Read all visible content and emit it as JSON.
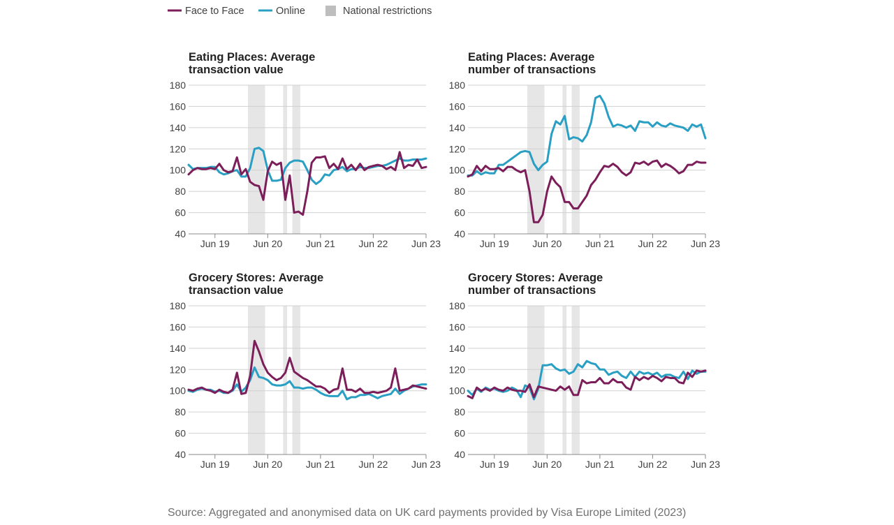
{
  "legend": {
    "items": [
      {
        "label": "Face to Face",
        "color": "#7b1e5a",
        "kind": "line"
      },
      {
        "label": "Online",
        "color": "#2a9fc4",
        "kind": "line"
      },
      {
        "label": "National restrictions",
        "color": "#bebebe",
        "kind": "box"
      }
    ]
  },
  "source": "Source: Aggregated and anonymised data on UK card payments provided by Visa Europe Limited (2023)",
  "colors": {
    "face_to_face": "#7b1e5a",
    "online": "#2a9fc4",
    "restrictions": "#e6e6e6",
    "grid": "#d0d0d0",
    "axis": "#888888"
  },
  "chart_data": [
    {
      "type": "line",
      "title_lines": [
        "Eating Places: Average",
        "transaction value"
      ],
      "x_ticks": [
        "Jun 19",
        "Jun 20",
        "Jun 21",
        "Jun 22",
        "Jun 23"
      ],
      "x_tick_index": [
        6,
        18,
        30,
        42,
        54
      ],
      "y_ticks": [
        "40",
        "60",
        "80",
        "100",
        "120",
        "140",
        "160",
        "180"
      ],
      "ylim": [
        40,
        180
      ],
      "xlim": [
        0,
        54
      ],
      "restrictions": [
        [
          13.5,
          17.4
        ],
        [
          21.5,
          22.4
        ],
        [
          23.6,
          25.4
        ]
      ],
      "series": [
        {
          "name": "Face to Face",
          "values": [
            96,
            100,
            102,
            101,
            101,
            102,
            101,
            106,
            100,
            98,
            99,
            112,
            96,
            101,
            89,
            86,
            85,
            72,
            99,
            108,
            105,
            107,
            72,
            95,
            60,
            61,
            58,
            80,
            107,
            112,
            112,
            113,
            102,
            106,
            101,
            111,
            101,
            105,
            100,
            106,
            100,
            103,
            104,
            105,
            104,
            101,
            103,
            100,
            117,
            102,
            105,
            104,
            110,
            102,
            103
          ]
        },
        {
          "name": "Online",
          "values": [
            105,
            101,
            102,
            102,
            102,
            103,
            103,
            98,
            96,
            97,
            99,
            100,
            94,
            94,
            102,
            120,
            121,
            118,
            100,
            90,
            90,
            91,
            102,
            107,
            109,
            109,
            108,
            100,
            91,
            87,
            90,
            96,
            95,
            100,
            101,
            103,
            99,
            101,
            101,
            103,
            102,
            102,
            103,
            104,
            104,
            105,
            107,
            109,
            111,
            109,
            109,
            110,
            110,
            110,
            111
          ]
        }
      ]
    },
    {
      "type": "line",
      "title_lines": [
        "Eating Places: Average",
        "number of transactions"
      ],
      "x_ticks": [
        "Jun 19",
        "Jun 20",
        "Jun 21",
        "Jun 22",
        "Jun 23"
      ],
      "x_tick_index": [
        6,
        18,
        30,
        42,
        54
      ],
      "y_ticks": [
        "40",
        "60",
        "80",
        "100",
        "120",
        "140",
        "160",
        "180"
      ],
      "ylim": [
        40,
        180
      ],
      "xlim": [
        0,
        54
      ],
      "restrictions": [
        [
          13.5,
          17.4
        ],
        [
          21.5,
          22.4
        ],
        [
          23.6,
          25.4
        ]
      ],
      "series": [
        {
          "name": "Face to Face",
          "values": [
            94,
            96,
            104,
            99,
            104,
            101,
            101,
            102,
            99,
            103,
            103,
            100,
            98,
            100,
            80,
            51,
            51,
            58,
            80,
            94,
            88,
            84,
            70,
            70,
            64,
            64,
            70,
            76,
            86,
            91,
            98,
            104,
            103,
            106,
            103,
            98,
            95,
            98,
            107,
            106,
            108,
            105,
            108,
            109,
            103,
            106,
            104,
            101,
            97,
            99,
            105,
            105,
            108,
            107,
            107
          ]
        },
        {
          "name": "Online",
          "values": [
            95,
            95,
            99,
            96,
            98,
            97,
            97,
            105,
            105,
            108,
            111,
            114,
            117,
            118,
            117,
            106,
            100,
            105,
            108,
            134,
            146,
            143,
            151,
            129,
            131,
            130,
            127,
            133,
            145,
            168,
            170,
            163,
            150,
            141,
            143,
            142,
            140,
            142,
            137,
            146,
            145,
            145,
            141,
            145,
            142,
            141,
            144,
            142,
            141,
            140,
            137,
            143,
            141,
            143,
            130
          ]
        }
      ]
    },
    {
      "type": "line",
      "title_lines": [
        "Grocery Stores: Average",
        "transaction value"
      ],
      "x_ticks": [
        "Jun 19",
        "Jun 20",
        "Jun 21",
        "Jun 22",
        "Jun 23"
      ],
      "x_tick_index": [
        6,
        18,
        30,
        42,
        54
      ],
      "y_ticks": [
        "40",
        "60",
        "80",
        "100",
        "120",
        "140",
        "160",
        "180"
      ],
      "ylim": [
        40,
        180
      ],
      "xlim": [
        0,
        54
      ],
      "restrictions": [
        [
          13.5,
          17.4
        ],
        [
          21.5,
          22.4
        ],
        [
          23.6,
          25.4
        ]
      ],
      "series": [
        {
          "name": "Face to Face",
          "values": [
            101,
            100,
            102,
            103,
            101,
            100,
            98,
            101,
            99,
            98,
            101,
            117,
            97,
            98,
            114,
            147,
            137,
            125,
            117,
            113,
            110,
            112,
            117,
            131,
            118,
            115,
            112,
            110,
            107,
            104,
            104,
            102,
            98,
            101,
            102,
            121,
            101,
            101,
            99,
            102,
            98,
            98,
            99,
            98,
            99,
            100,
            103,
            121,
            100,
            101,
            102,
            105,
            104,
            103,
            102
          ]
        },
        {
          "name": "Online",
          "values": [
            100,
            99,
            101,
            102,
            101,
            101,
            99,
            100,
            98,
            98,
            100,
            106,
            99,
            103,
            110,
            122,
            113,
            112,
            110,
            106,
            105,
            105,
            106,
            109,
            103,
            103,
            102,
            103,
            103,
            101,
            98,
            96,
            95,
            95,
            95,
            100,
            92,
            94,
            94,
            96,
            96,
            97,
            95,
            93,
            95,
            96,
            97,
            102,
            97,
            100,
            102,
            104,
            105,
            106,
            106
          ]
        }
      ]
    },
    {
      "type": "line",
      "title_lines": [
        "Grocery Stores: Average",
        "number of transactions"
      ],
      "x_ticks": [
        "Jun 19",
        "Jun 20",
        "Jun 21",
        "Jun 22",
        "Jun 23"
      ],
      "x_tick_index": [
        6,
        18,
        30,
        42,
        54
      ],
      "y_ticks": [
        "40",
        "60",
        "80",
        "100",
        "120",
        "140",
        "160",
        "180"
      ],
      "ylim": [
        40,
        180
      ],
      "xlim": [
        0,
        54
      ],
      "restrictions": [
        [
          13.5,
          17.4
        ],
        [
          21.5,
          22.4
        ],
        [
          23.6,
          25.4
        ]
      ],
      "series": [
        {
          "name": "Face to Face",
          "values": [
            95,
            93,
            103,
            100,
            102,
            100,
            103,
            101,
            100,
            103,
            101,
            100,
            100,
            99,
            106,
            94,
            104,
            103,
            102,
            101,
            100,
            104,
            101,
            104,
            96,
            96,
            110,
            107,
            108,
            108,
            112,
            107,
            107,
            111,
            108,
            108,
            103,
            101,
            113,
            110,
            113,
            111,
            114,
            112,
            109,
            113,
            112,
            112,
            108,
            107,
            117,
            113,
            119,
            118,
            119
          ]
        },
        {
          "name": "Online",
          "values": [
            100,
            96,
            102,
            99,
            103,
            101,
            102,
            100,
            99,
            100,
            103,
            101,
            94,
            105,
            103,
            92,
            102,
            124,
            124,
            125,
            121,
            119,
            120,
            116,
            118,
            125,
            122,
            128,
            126,
            125,
            120,
            120,
            115,
            117,
            118,
            114,
            112,
            118,
            113,
            118,
            116,
            117,
            115,
            117,
            113,
            115,
            115,
            113,
            112,
            118,
            111,
            119,
            116,
            118,
            118
          ]
        }
      ]
    }
  ]
}
